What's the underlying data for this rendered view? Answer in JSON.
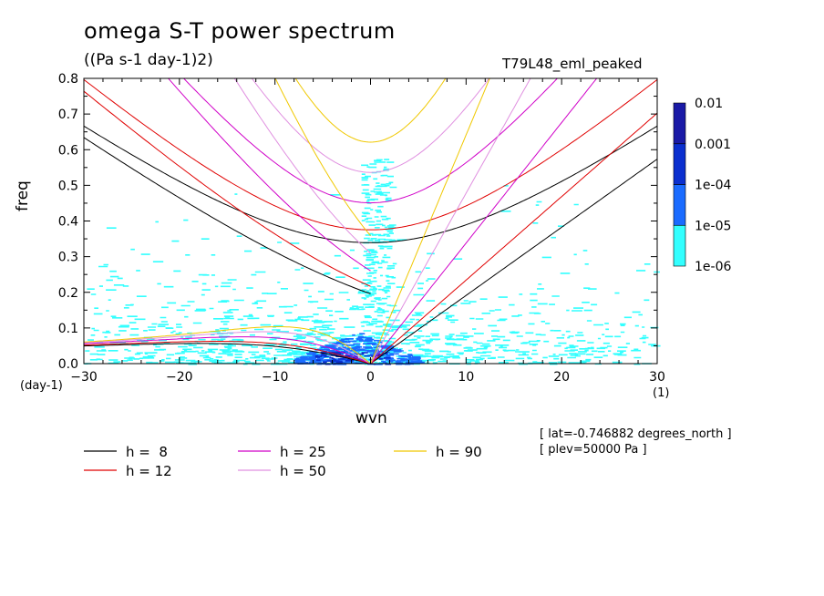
{
  "header": {
    "title": "omega S-T power spectrum",
    "units": "((Pa s-1 day-1)2)",
    "run_name": "T79L48_eml_peaked"
  },
  "footer": {
    "lat": "[ lat=-0.746882 degrees_north ]",
    "plev": "[ plev=50000 Pa ]"
  },
  "chart_data": {
    "type": "heatmap",
    "title": "omega S-T power spectrum",
    "subtitle": "((Pa s-1 day-1)2)",
    "xlabel": "wvn",
    "ylabel": "freq",
    "x_unit": "(1)",
    "y_unit": "(day-1)",
    "xlim": [
      -30,
      30
    ],
    "ylim": [
      0,
      0.8
    ],
    "x_ticks": [
      -30,
      -20,
      -10,
      0,
      10,
      20,
      30
    ],
    "x_tick_labels": [
      "-30",
      "-20",
      "-10",
      "0",
      "10",
      "20",
      "30"
    ],
    "y_ticks": [
      0,
      0.1,
      0.2,
      0.3,
      0.4,
      0.5,
      0.6,
      0.7,
      0.8
    ],
    "y_tick_labels": [
      "0.0",
      "0.1",
      "0.2",
      "0.3",
      "0.4",
      "0.5",
      "0.6",
      "0.7",
      "0.8"
    ],
    "colorbar": {
      "levels": [
        "1e-06",
        "1e-05",
        "1e-04",
        "0.001",
        "0.01"
      ],
      "colors": [
        "#33ffff",
        "#1a6bff",
        "#0a2fcf",
        "#1a1aa6",
        "#4b0fb8"
      ]
    },
    "series": [
      {
        "name": "h =  8",
        "color": "#000000",
        "equivalent_depth": 8
      },
      {
        "name": "h = 12",
        "color": "#e00000",
        "equivalent_depth": 12
      },
      {
        "name": "h = 25",
        "color": "#d000c8",
        "equivalent_depth": 25
      },
      {
        "name": "h = 50",
        "color": "#e090e0",
        "equivalent_depth": 50
      },
      {
        "name": "h = 90",
        "color": "#f0c800",
        "equivalent_depth": 90
      }
    ],
    "legend_placement": "bottom"
  }
}
